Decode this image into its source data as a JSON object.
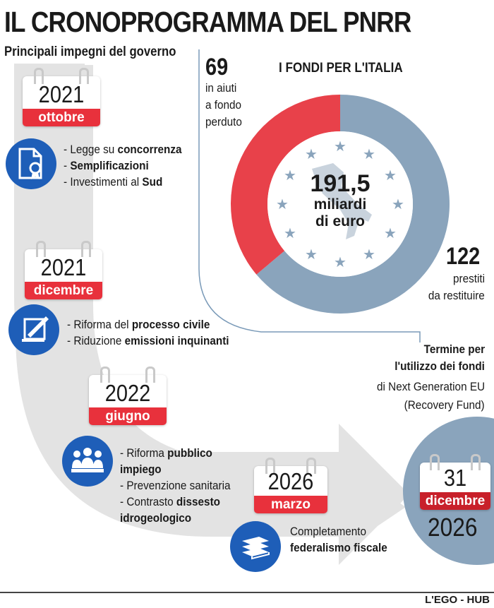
{
  "header": {
    "title": "IL CRONOPROGRAMMA DEL PNRR",
    "subtitle": "Principali impegni del governo"
  },
  "timeline": [
    {
      "year": "2021",
      "month": "ottobre",
      "icon": "certificate-document-icon",
      "items": [
        {
          "pre": "- Legge su ",
          "bold": "concorrenza",
          "post": ""
        },
        {
          "pre": "- ",
          "bold": "Semplificazioni",
          "post": ""
        },
        {
          "pre": "- Investimenti al ",
          "bold": "Sud",
          "post": ""
        }
      ]
    },
    {
      "year": "2021",
      "month": "dicembre",
      "icon": "scroll-quill-icon",
      "items": [
        {
          "pre": "- Riforma del ",
          "bold": "processo civile",
          "post": ""
        },
        {
          "pre": "- Riduzione ",
          "bold": "emissioni inquinanti",
          "post": ""
        }
      ]
    },
    {
      "year": "2022",
      "month": "giugno",
      "icon": "people-group-icon",
      "items": [
        {
          "pre": "- Riforma ",
          "bold": "pubblico",
          "post": ""
        },
        {
          "pre": "",
          "bold": "impiego",
          "post": ""
        },
        {
          "pre": "- Prevenzione sanitaria",
          "bold": "",
          "post": ""
        },
        {
          "pre": "-  Contrasto ",
          "bold": "dissesto",
          "post": ""
        },
        {
          "pre": "",
          "bold": "idrogeologico",
          "post": ""
        }
      ]
    },
    {
      "year": "2026",
      "month": "marzo",
      "icon": "money-stack-icon",
      "items": [
        {
          "pre": "Completamento",
          "bold": "",
          "post": ""
        },
        {
          "pre": "",
          "bold": "federalismo fiscale",
          "post": ""
        }
      ]
    }
  ],
  "funds": {
    "title": "I FONDI PER L'ITALIA",
    "total_value": "191,5",
    "total_unit_1": "miliardi",
    "total_unit_2": "di euro",
    "grants_value": "69",
    "grants_label_1": "in aiuti",
    "grants_label_2": "a fondo",
    "grants_label_3": "perduto",
    "loans_value": "122",
    "loans_label_1": "prestiti",
    "loans_label_2": "da restituire",
    "grants_share": 69,
    "loans_share": 122,
    "grants_color": "#e8414a",
    "loans_color": "#8aa4bc"
  },
  "deadline": {
    "label_bold_1": "Termine per",
    "label_bold_2": "l'utilizzo dei fondi",
    "label_3": "di Next Generation EU",
    "label_4": "(Recovery Fund)",
    "day": "31",
    "month": "dicembre",
    "year": "2026"
  },
  "footer": {
    "credit": "L'EGO - HUB"
  }
}
